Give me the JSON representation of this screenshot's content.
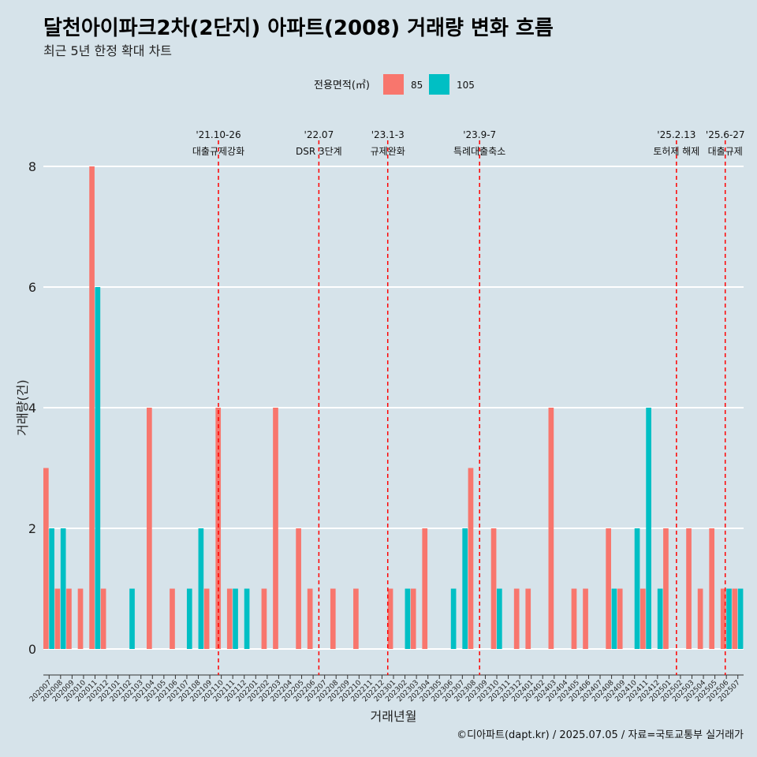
{
  "chart_data": {
    "type": "bar",
    "title": "달천아이파크2차(2단지) 아파트(2008) 거래량 변화 흐름",
    "subtitle": "최근 5년 한정 확대 차트",
    "xlabel": "거래년월",
    "ylabel": "거래량(건)",
    "ylim": [
      0,
      8
    ],
    "yticks": [
      0,
      2,
      4,
      6,
      8
    ],
    "legend": {
      "title": "전용면적(㎡)",
      "position": "top"
    },
    "categories": [
      "202007",
      "202008",
      "202009",
      "202010",
      "202011",
      "202012",
      "202101",
      "202102",
      "202103",
      "202104",
      "202105",
      "202106",
      "202107",
      "202108",
      "202109",
      "202110",
      "202111",
      "202112",
      "202201",
      "202202",
      "202203",
      "202204",
      "202205",
      "202206",
      "202207",
      "202208",
      "202209",
      "202210",
      "202211",
      "202212",
      "202301",
      "202302",
      "202303",
      "202304",
      "202305",
      "202306",
      "202307",
      "202308",
      "202309",
      "202310",
      "202311",
      "202312",
      "202401",
      "202402",
      "202403",
      "202404",
      "202405",
      "202406",
      "202407",
      "202408",
      "202409",
      "202410",
      "202411",
      "202412",
      "202501",
      "202502",
      "202503",
      "202504",
      "202505",
      "202506",
      "202507"
    ],
    "series": [
      {
        "name": "85",
        "color": "#f8766d",
        "values": [
          3,
          1,
          1,
          1,
          8,
          1,
          0,
          0,
          0,
          4,
          0,
          1,
          0,
          0,
          1,
          4,
          1,
          0,
          0,
          1,
          4,
          0,
          2,
          1,
          0,
          1,
          0,
          1,
          0,
          0,
          1,
          0,
          1,
          2,
          0,
          0,
          0,
          3,
          0,
          2,
          0,
          1,
          1,
          0,
          4,
          0,
          1,
          1,
          0,
          2,
          1,
          0,
          1,
          0,
          2,
          0,
          2,
          1,
          2,
          1,
          1
        ]
      },
      {
        "name": "105",
        "color": "#00bfc4",
        "values": [
          2,
          2,
          0,
          0,
          6,
          0,
          0,
          1,
          0,
          0,
          0,
          0,
          1,
          2,
          0,
          0,
          1,
          1,
          0,
          0,
          0,
          0,
          0,
          0,
          0,
          0,
          0,
          0,
          0,
          0,
          0,
          1,
          0,
          0,
          0,
          1,
          2,
          0,
          0,
          1,
          0,
          0,
          0,
          0,
          0,
          0,
          0,
          0,
          0,
          1,
          0,
          2,
          4,
          1,
          0,
          0,
          0,
          0,
          0,
          1,
          1
        ]
      }
    ],
    "annotations": [
      {
        "date": "'21.10-26",
        "label": "대출규제강화",
        "month": "202110",
        "offset": 0.25
      },
      {
        "date": "'22.07",
        "label": "DSR 3단계",
        "month": "202207",
        "offset": 0.0
      },
      {
        "date": "'23.1-3",
        "label": "규제완화",
        "month": "202301",
        "offset": 0.0
      },
      {
        "date": "'23.9-7",
        "label": "특례대출축소",
        "month": "202309",
        "offset": 0.0
      },
      {
        "date": "'25.2.13",
        "label": "토허제 해제",
        "month": "202502",
        "offset": 0.15
      },
      {
        "date": "'25.6-27",
        "label": "대출규제",
        "month": "202506",
        "offset": 0.4
      }
    ],
    "caption": "©디아파트(dapt.kr) / 2025.07.05 / 자료=국토교통부 실거래가"
  }
}
